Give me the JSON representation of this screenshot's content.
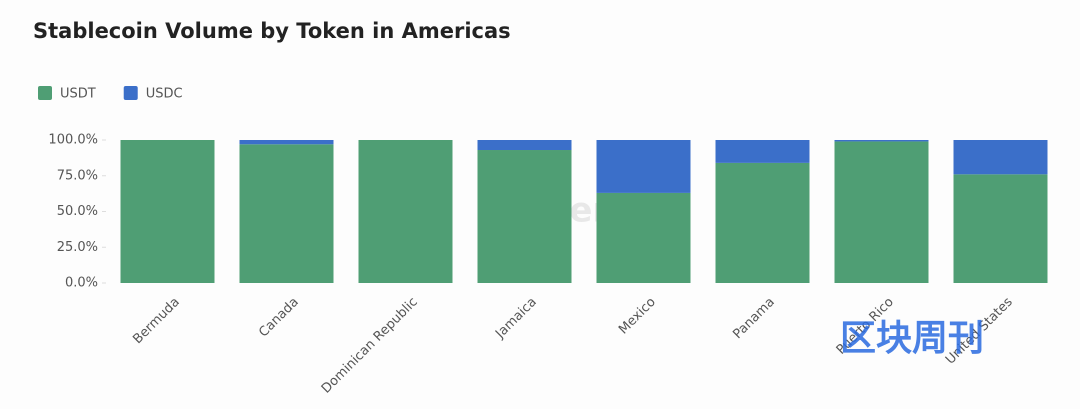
{
  "chart_data": {
    "type": "stacked_bar",
    "title": "Stablecoin Volume by Token in Americas",
    "categories": [
      "Bermuda",
      "Canada",
      "Dominican Republic",
      "Jamaica",
      "Mexico",
      "Panama",
      "Puerto Rico",
      "United States"
    ],
    "series": [
      {
        "name": "USDT",
        "color": "#4f9e74",
        "values": [
          100,
          97,
          100,
          93,
          63,
          84,
          99,
          76
        ]
      },
      {
        "name": "USDC",
        "color": "#3b6fc9",
        "values": [
          0,
          3,
          0,
          7,
          37,
          16,
          1,
          24
        ]
      }
    ],
    "ylim": [
      0,
      100
    ],
    "yticks": [
      {
        "value": 0,
        "label": "0.0%"
      },
      {
        "value": 25,
        "label": "25.0%"
      },
      {
        "value": 50,
        "label": "50.0%"
      },
      {
        "value": 75,
        "label": "75.0%"
      },
      {
        "value": 100,
        "label": "100.0%"
      }
    ],
    "legend": "top-left",
    "watermarks": [
      "Artemis",
      "区块周刊"
    ]
  }
}
